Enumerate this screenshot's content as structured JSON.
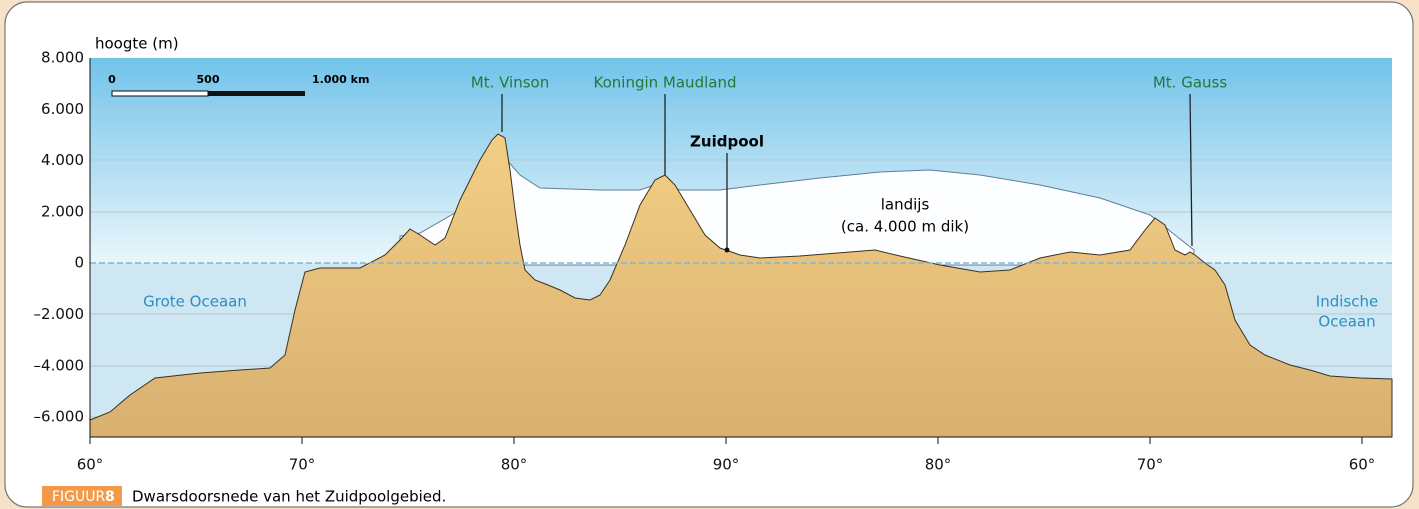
{
  "axis": {
    "y_label": "hoogte (m)",
    "yticks": [
      "8.000",
      "6.000",
      "4.000",
      "2.000",
      "0",
      "–2.000",
      "–4.000",
      "–6.000"
    ],
    "xticks": [
      "60°",
      "70°",
      "80°",
      "90°",
      "80°",
      "70°",
      "60°"
    ]
  },
  "scale": {
    "start": "0",
    "middle": "500",
    "end": "1.000 km"
  },
  "labels": {
    "vinson": "Mt. Vinson",
    "maudland": "Koningin Maudland",
    "gauss": "Mt. Gauss",
    "pole": "Zuidpool",
    "ice": "landijs",
    "ice_note": "(ca. 4.000 m dik)",
    "pacific": "Grote Oceaan",
    "indian_1": "Indische",
    "indian_2": "Oceaan"
  },
  "caption": {
    "badge": "FIGUUR",
    "number": "8",
    "text": "Dwarsdoorsnede van het Zuidpoolgebied."
  }
}
